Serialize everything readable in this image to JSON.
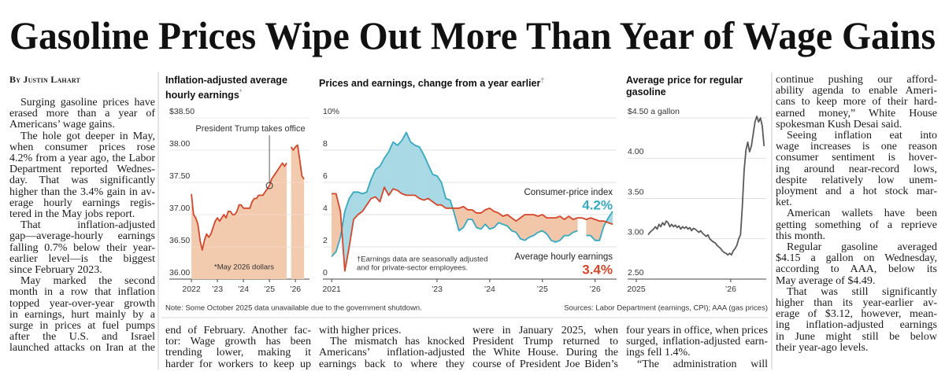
{
  "headline": "Gasoline Prices Wipe Out More Than Year of Wage Gains",
  "byline": "By Justin Lahart",
  "columns": [
    {
      "paragraphs": [
        [
          "Surging gasoline prices have",
          "erased more than a year of",
          "Americans’ wage gains."
        ],
        [
          "The hole got deeper in May,",
          "when consumer prices rose",
          "4.2% from a year ago, the Labor",
          "Department reported Wednes-",
          "day. That was significantly",
          "higher than the 3.4% gain in av-",
          "erage hourly earnings regis-",
          "tered in the May jobs report."
        ],
        [
          "That inflation-adjusted",
          "gap—average-hourly earnings",
          "falling 0.7% below their year-",
          "earlier level—is the biggest",
          "since February 2023."
        ],
        [
          "May marked the second",
          "month in a row that inflation",
          "topped year-over-year growth",
          "in earnings, hurt mainly by a",
          "surge in prices at fuel pumps",
          "after the U.S. and Israel",
          "launched attacks on Iran at the"
        ]
      ]
    },
    {
      "paragraphs": [
        [
          "end of February. Another fac-",
          "tor: Wage growth has been",
          "trending lower, making it",
          "harder for workers to keep up"
        ]
      ]
    },
    {
      "paragraphs": [
        [
          "with higher prices."
        ],
        [
          "The mismatch has knocked",
          "Americans’ inflation-adjusted",
          "earnings back to where they"
        ]
      ]
    },
    {
      "paragraphs": [
        [
          "were in January 2025, when",
          "President Trump returned to",
          "the White House. During the",
          "course of President Joe Biden’s"
        ]
      ]
    },
    {
      "paragraphs": [
        [
          "four years in office, when prices",
          "surged, inflation-adjusted earn-",
          "ings fell 1.4%."
        ],
        [
          "“The administration will"
        ]
      ]
    },
    {
      "paragraphs": [
        [
          "continue pushing our afford-",
          "ability agenda to enable Ameri-",
          "cans to keep more of their hard-",
          "earned money,” White House",
          "spokesman Kush Desai said."
        ],
        [
          "Seeing inflation eat into",
          "wage increases is one reason",
          "consumer sentiment is hover-",
          "ing around near-record lows,",
          "despite relatively low unem-",
          "ployment and a hot stock mar-",
          "ket."
        ],
        [
          "American wallets have been",
          "getting something of a reprieve",
          "this month."
        ],
        [
          "Regular gasoline averaged",
          "$4.15 a gallon on Wednesday,",
          "according to AAA, below its",
          "May average of $4.49."
        ],
        [
          "That was still significantly",
          "higher than its year-earlier av-",
          "erage of $3.12, however, mean-",
          "ing inflation-adjusted earnings",
          "in June might still be below",
          "their year-ago levels."
        ]
      ]
    }
  ],
  "chart_data": [
    {
      "type": "area",
      "title": "Inflation-adjusted average hourly earnings",
      "title_mark": "*",
      "values": [
        37.32,
        37.0,
        36.95,
        36.85,
        36.6,
        36.45,
        36.6,
        36.7,
        36.65,
        36.7,
        36.8,
        36.9,
        36.95,
        36.9,
        36.95,
        37.0,
        36.95,
        37.05,
        37.05,
        37.0,
        37.0,
        37.05,
        37.15,
        37.15,
        37.1,
        37.1,
        37.1,
        37.1,
        37.2,
        37.25,
        37.25,
        37.3,
        37.3,
        37.3,
        37.35,
        37.4,
        37.45,
        37.55,
        37.6,
        37.65,
        37.7,
        37.75,
        37.8,
        37.75,
        37.8,
        null,
        38.05,
        38.0,
        38.05,
        38.08,
        37.85,
        37.6,
        37.55
      ],
      "color": "#d4472a",
      "fill": "#f2caae",
      "ylim": [
        36.0,
        38.5
      ],
      "yticks": [
        {
          "value": 38.5,
          "label": "$38.50"
        },
        {
          "value": 38.0,
          "label": "38.00"
        },
        {
          "value": 37.5,
          "label": "37.50"
        },
        {
          "value": 37.0,
          "label": "37.00"
        },
        {
          "value": 36.5,
          "label": "36.50"
        },
        {
          "value": 36.0,
          "label": "36.00"
        }
      ],
      "xlim": [
        -10.2,
        54.5
      ],
      "xticks": [
        {
          "value": 0,
          "label": "2022"
        },
        {
          "value": 12,
          "label": "’23"
        },
        {
          "value": 24,
          "label": "’24"
        },
        {
          "value": 36,
          "label": "’25"
        },
        {
          "value": 48,
          "label": "’26"
        }
      ],
      "annotation": "President Trump takes office",
      "note": "*May 2026 dollars",
      "grid": true
    },
    {
      "type": "line",
      "title": "Prices and earnings, change from a year earlier",
      "title_mark": "†",
      "series": [
        {
          "name": "Consumer-price index",
          "color": "#35a9c2",
          "values": [
            1.4,
            1.7,
            2.6,
            4.2,
            5.0,
            5.4,
            5.4,
            5.3,
            5.4,
            6.2,
            6.8,
            7.0,
            7.5,
            7.9,
            8.5,
            8.3,
            8.6,
            9.1,
            8.5,
            8.3,
            8.2,
            7.7,
            7.1,
            6.5,
            6.4,
            6.0,
            5.0,
            4.9,
            4.0,
            3.0,
            3.2,
            3.7,
            3.7,
            3.2,
            3.1,
            3.4,
            3.1,
            3.2,
            3.5,
            3.4,
            3.3,
            3.0,
            2.9,
            2.5,
            2.4,
            2.6,
            2.7,
            2.9,
            3.0,
            2.8,
            2.4,
            2.3,
            2.4,
            2.7,
            2.7,
            2.9,
            3.0,
            null,
            2.7,
            2.7,
            2.4,
            2.4,
            3.3,
            3.8,
            4.2
          ],
          "value_labels": [
            null,
            null,
            null,
            null,
            null,
            null,
            null,
            null,
            null,
            null,
            null,
            null,
            null,
            null,
            null,
            null,
            null,
            null,
            null,
            null,
            null,
            null,
            null,
            null,
            null,
            null,
            null,
            null,
            null,
            null,
            null,
            null,
            null,
            null,
            null,
            null,
            null,
            null,
            null,
            null,
            null,
            null,
            null,
            null,
            null,
            null,
            null,
            null,
            null,
            null,
            null,
            null,
            null,
            null,
            null,
            null,
            null,
            null,
            null,
            null,
            null,
            null,
            null,
            null,
            "4.2%"
          ]
        },
        {
          "name": "Average hourly earnings",
          "color": "#d4472a",
          "values": [
            5.3,
            5.3,
            4.2,
            0.5,
            2.0,
            3.7,
            4.0,
            4.2,
            4.6,
            5.0,
            5.1,
            4.8,
            5.7,
            5.2,
            5.6,
            5.5,
            5.3,
            5.2,
            5.2,
            5.2,
            5.0,
            4.9,
            5.0,
            4.8,
            4.6,
            4.6,
            4.4,
            4.4,
            4.4,
            4.4,
            4.5,
            4.3,
            4.3,
            4.1,
            4.1,
            4.3,
            4.4,
            4.2,
            4.1,
            3.9,
            4.0,
            3.8,
            3.6,
            3.8,
            4.0,
            4.0,
            4.0,
            3.9,
            4.0,
            3.8,
            3.8,
            3.8,
            3.9,
            3.7,
            3.9,
            3.7,
            3.8,
            3.8,
            3.7,
            3.8,
            3.7,
            3.6,
            3.6,
            3.5,
            3.4
          ],
          "value_labels": [
            null,
            null,
            null,
            null,
            null,
            null,
            null,
            null,
            null,
            null,
            null,
            null,
            null,
            null,
            null,
            null,
            null,
            null,
            null,
            null,
            null,
            null,
            null,
            null,
            null,
            null,
            null,
            null,
            null,
            null,
            null,
            null,
            null,
            null,
            null,
            null,
            null,
            null,
            null,
            null,
            null,
            null,
            null,
            null,
            null,
            null,
            null,
            null,
            null,
            null,
            null,
            null,
            null,
            null,
            null,
            null,
            null,
            null,
            null,
            null,
            null,
            null,
            null,
            null,
            "3.4%"
          ]
        }
      ],
      "fill_colors": [
        "#a9d9e4",
        "#f2c6a9"
      ],
      "ylim": [
        0,
        10
      ],
      "yticks": [
        {
          "value": 10,
          "label": "10%"
        },
        8,
        6,
        4,
        2,
        0
      ],
      "xlim": [
        -2.0,
        64.9
      ],
      "xticks": [
        {
          "value": 0,
          "label": "2021"
        },
        {
          "value": 24,
          "label": "’23"
        },
        {
          "value": 36,
          "label": "’24"
        },
        {
          "value": 48,
          "label": "’25"
        },
        {
          "value": 60,
          "label": "’26"
        }
      ],
      "footnote": [
        "†Earnings data are seasonally adjusted",
        "and for private-sector employees."
      ],
      "grid": true
    },
    {
      "type": "line",
      "title": "Average price for regular gasoline",
      "values": [
        3.05,
        3.08,
        3.1,
        3.12,
        3.15,
        3.12,
        3.18,
        3.15,
        3.2,
        3.17,
        3.22,
        3.2,
        3.15,
        3.18,
        3.15,
        3.17,
        3.14,
        3.16,
        3.12,
        3.15,
        3.13,
        3.15,
        3.12,
        3.14,
        3.1,
        3.13,
        3.12,
        3.1,
        3.08,
        3.1,
        3.07,
        3.05,
        3.03,
        3.05,
        3.0,
        2.98,
        2.96,
        2.95,
        2.92,
        2.9,
        2.88,
        2.85,
        2.83,
        2.82,
        2.8,
        2.82,
        2.8,
        2.85,
        2.88,
        2.92,
        3.0,
        3.05,
        3.4,
        3.85,
        4.1,
        4.2,
        4.08,
        4.15,
        4.3,
        4.45,
        4.52,
        4.45,
        4.5,
        4.4,
        4.15
      ],
      "color": "#5a5a5a",
      "ylim": [
        2.5,
        4.5
      ],
      "yticks": [
        {
          "value": 4.5,
          "label": "$4.50 a gallon"
        },
        {
          "value": 4.0,
          "label": "4.00"
        },
        {
          "value": 3.5,
          "label": "3.50"
        },
        {
          "value": 3.0,
          "label": "3.00"
        },
        {
          "value": 2.5,
          "label": "2.50"
        }
      ],
      "xlim": [
        -11.3,
        65.2
      ],
      "xticks": [
        {
          "value": -6.5,
          "label": "2025"
        },
        {
          "value": 45.6,
          "label": "’26"
        }
      ],
      "grid": true
    }
  ],
  "note": "Note: Some October 2025 data unavailable due to the government shutdown.",
  "sources": "Sources: Labor Department (earnings, CPI); AAA (gas prices)"
}
